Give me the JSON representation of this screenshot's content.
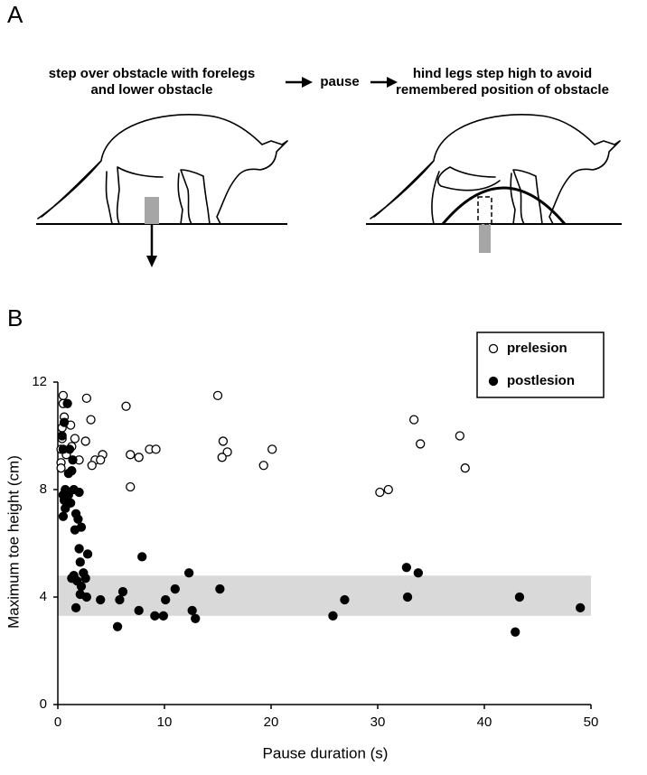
{
  "panel_a": {
    "label": "A",
    "step_1": [
      "step over obstacle with forelegs",
      "and lower obstacle"
    ],
    "step_2": "pause",
    "step_3": [
      "hind legs step high to avoid",
      "remembered position of obstacle"
    ]
  },
  "chart_data": {
    "type": "scatter",
    "panel_label": "B",
    "x_label": "Pause duration (s)",
    "y_label": "Maximum toe height (cm)",
    "xlim": [
      0,
      50
    ],
    "ylim": [
      0,
      12
    ],
    "xticks": [
      0,
      10,
      20,
      30,
      40,
      50
    ],
    "yticks": [
      0,
      4,
      8,
      12
    ],
    "grid": false,
    "legend": "upper right",
    "shaded_band": {
      "ymin": 3.3,
      "ymax": 4.8,
      "color": "#d9d9d9"
    },
    "series": [
      {
        "name": "prelesion",
        "marker": "open",
        "color": "#000000",
        "x": [
          0.5,
          0.5,
          0.6,
          0.4,
          0.4,
          0.3,
          0.3,
          0.3,
          1.2,
          1.3,
          1.6,
          0.8,
          2.7,
          3.1,
          2.6,
          2.0,
          3.5,
          3.2,
          4.2,
          4.0,
          6.4,
          6.8,
          6.8,
          7.6,
          8.6,
          9.2,
          15.0,
          15.5,
          15.9,
          15.4,
          19.3,
          20.1,
          30.2,
          31.0,
          33.4,
          34.0,
          37.7,
          38.2
        ],
        "values": [
          11.5,
          11.2,
          10.7,
          10.3,
          9.9,
          9.5,
          9.0,
          8.8,
          10.4,
          9.6,
          9.9,
          9.3,
          11.4,
          10.6,
          9.8,
          9.1,
          9.1,
          8.9,
          9.3,
          9.1,
          11.1,
          9.3,
          8.1,
          9.2,
          9.5,
          9.5,
          11.5,
          9.8,
          9.4,
          9.2,
          8.9,
          9.5,
          7.9,
          8.0,
          10.6,
          9.7,
          10.0,
          8.8
        ]
      },
      {
        "name": "postlesion",
        "marker": "filled",
        "color": "#000000",
        "x": [
          0.9,
          0.6,
          0.4,
          0.5,
          1.1,
          1.4,
          1.0,
          1.3,
          0.7,
          1.0,
          0.6,
          0.5,
          0.7,
          1.2,
          0.5,
          1.5,
          2.0,
          1.7,
          1.9,
          2.2,
          1.6,
          2.0,
          2.8,
          2.1,
          1.5,
          1.3,
          2.4,
          1.8,
          2.2,
          2.6,
          2.1,
          1.7,
          2.7,
          4.0,
          5.8,
          6.1,
          5.6,
          7.9,
          7.6,
          9.1,
          9.9,
          10.1,
          11.0,
          12.3,
          12.6,
          12.9,
          15.2,
          25.8,
          26.9,
          32.7,
          32.8,
          33.8,
          42.9,
          43.3,
          49.0
        ],
        "values": [
          11.2,
          10.5,
          10.0,
          9.5,
          9.5,
          9.1,
          8.6,
          8.7,
          8.0,
          7.8,
          7.6,
          7.0,
          7.3,
          7.5,
          7.8,
          8.0,
          7.9,
          7.1,
          6.9,
          6.6,
          6.5,
          5.8,
          5.6,
          5.3,
          4.8,
          4.7,
          4.9,
          4.6,
          4.4,
          4.7,
          4.1,
          3.6,
          4.0,
          3.9,
          3.9,
          4.2,
          2.9,
          5.5,
          3.5,
          3.3,
          3.3,
          3.9,
          4.3,
          4.9,
          3.5,
          3.2,
          4.3,
          3.3,
          3.9,
          5.1,
          4.0,
          4.9,
          2.7,
          4.0,
          3.6
        ]
      }
    ]
  }
}
